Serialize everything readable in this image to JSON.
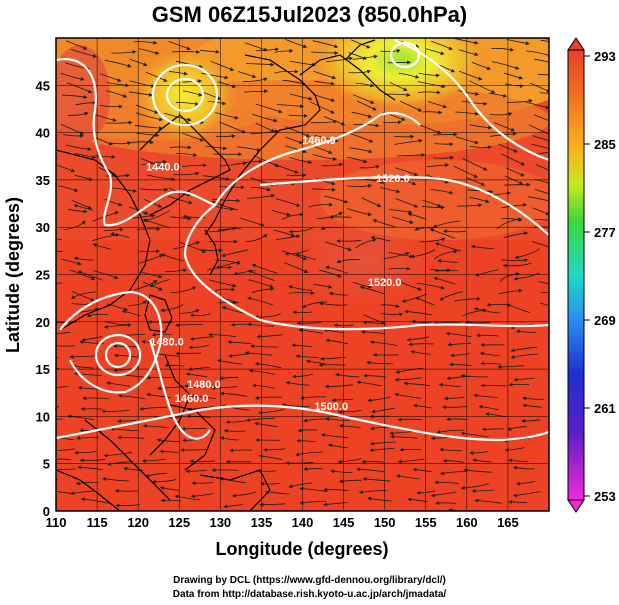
{
  "title": "GSM 06Z15Jul2023 (850.0hPa)",
  "credits": {
    "line1": "Drawing by DCL (https://www.gfd-dennou.org/library/dcl/)",
    "line2": "Data from http://database.rish.kyoto-u.ac.jp/arch/jmadata/"
  },
  "chart_data": {
    "type": "heatmap",
    "xlabel": "Longitude (degrees)",
    "ylabel": "Latitude  (degrees)",
    "xlim": [
      110,
      170
    ],
    "ylim": [
      0,
      50
    ],
    "x_ticks": [
      110,
      115,
      120,
      125,
      130,
      135,
      140,
      145,
      150,
      155,
      160,
      165
    ],
    "y_ticks": [
      0,
      5,
      10,
      15,
      20,
      25,
      30,
      35,
      40,
      45
    ],
    "grid": true,
    "colorbar": {
      "ticks": [
        293,
        285,
        277,
        269,
        261,
        253
      ],
      "range": [
        253,
        293
      ]
    },
    "contour_labels": [
      {
        "text": "1440.0",
        "lon": 123,
        "lat": 36
      },
      {
        "text": "1460.0",
        "lon": 142,
        "lat": 38.8
      },
      {
        "text": "1520.0",
        "lon": 151,
        "lat": 34.8
      },
      {
        "text": "1520.0",
        "lon": 150,
        "lat": 23.8
      },
      {
        "text": "1500.0",
        "lon": 143.5,
        "lat": 10.7
      },
      {
        "text": "1480.0",
        "lon": 123.5,
        "lat": 17.5
      },
      {
        "text": "1460.0",
        "lon": 126.5,
        "lat": 11.5
      },
      {
        "text": "1480.0",
        "lon": 128,
        "lat": 13
      }
    ],
    "legend_position": "right"
  }
}
